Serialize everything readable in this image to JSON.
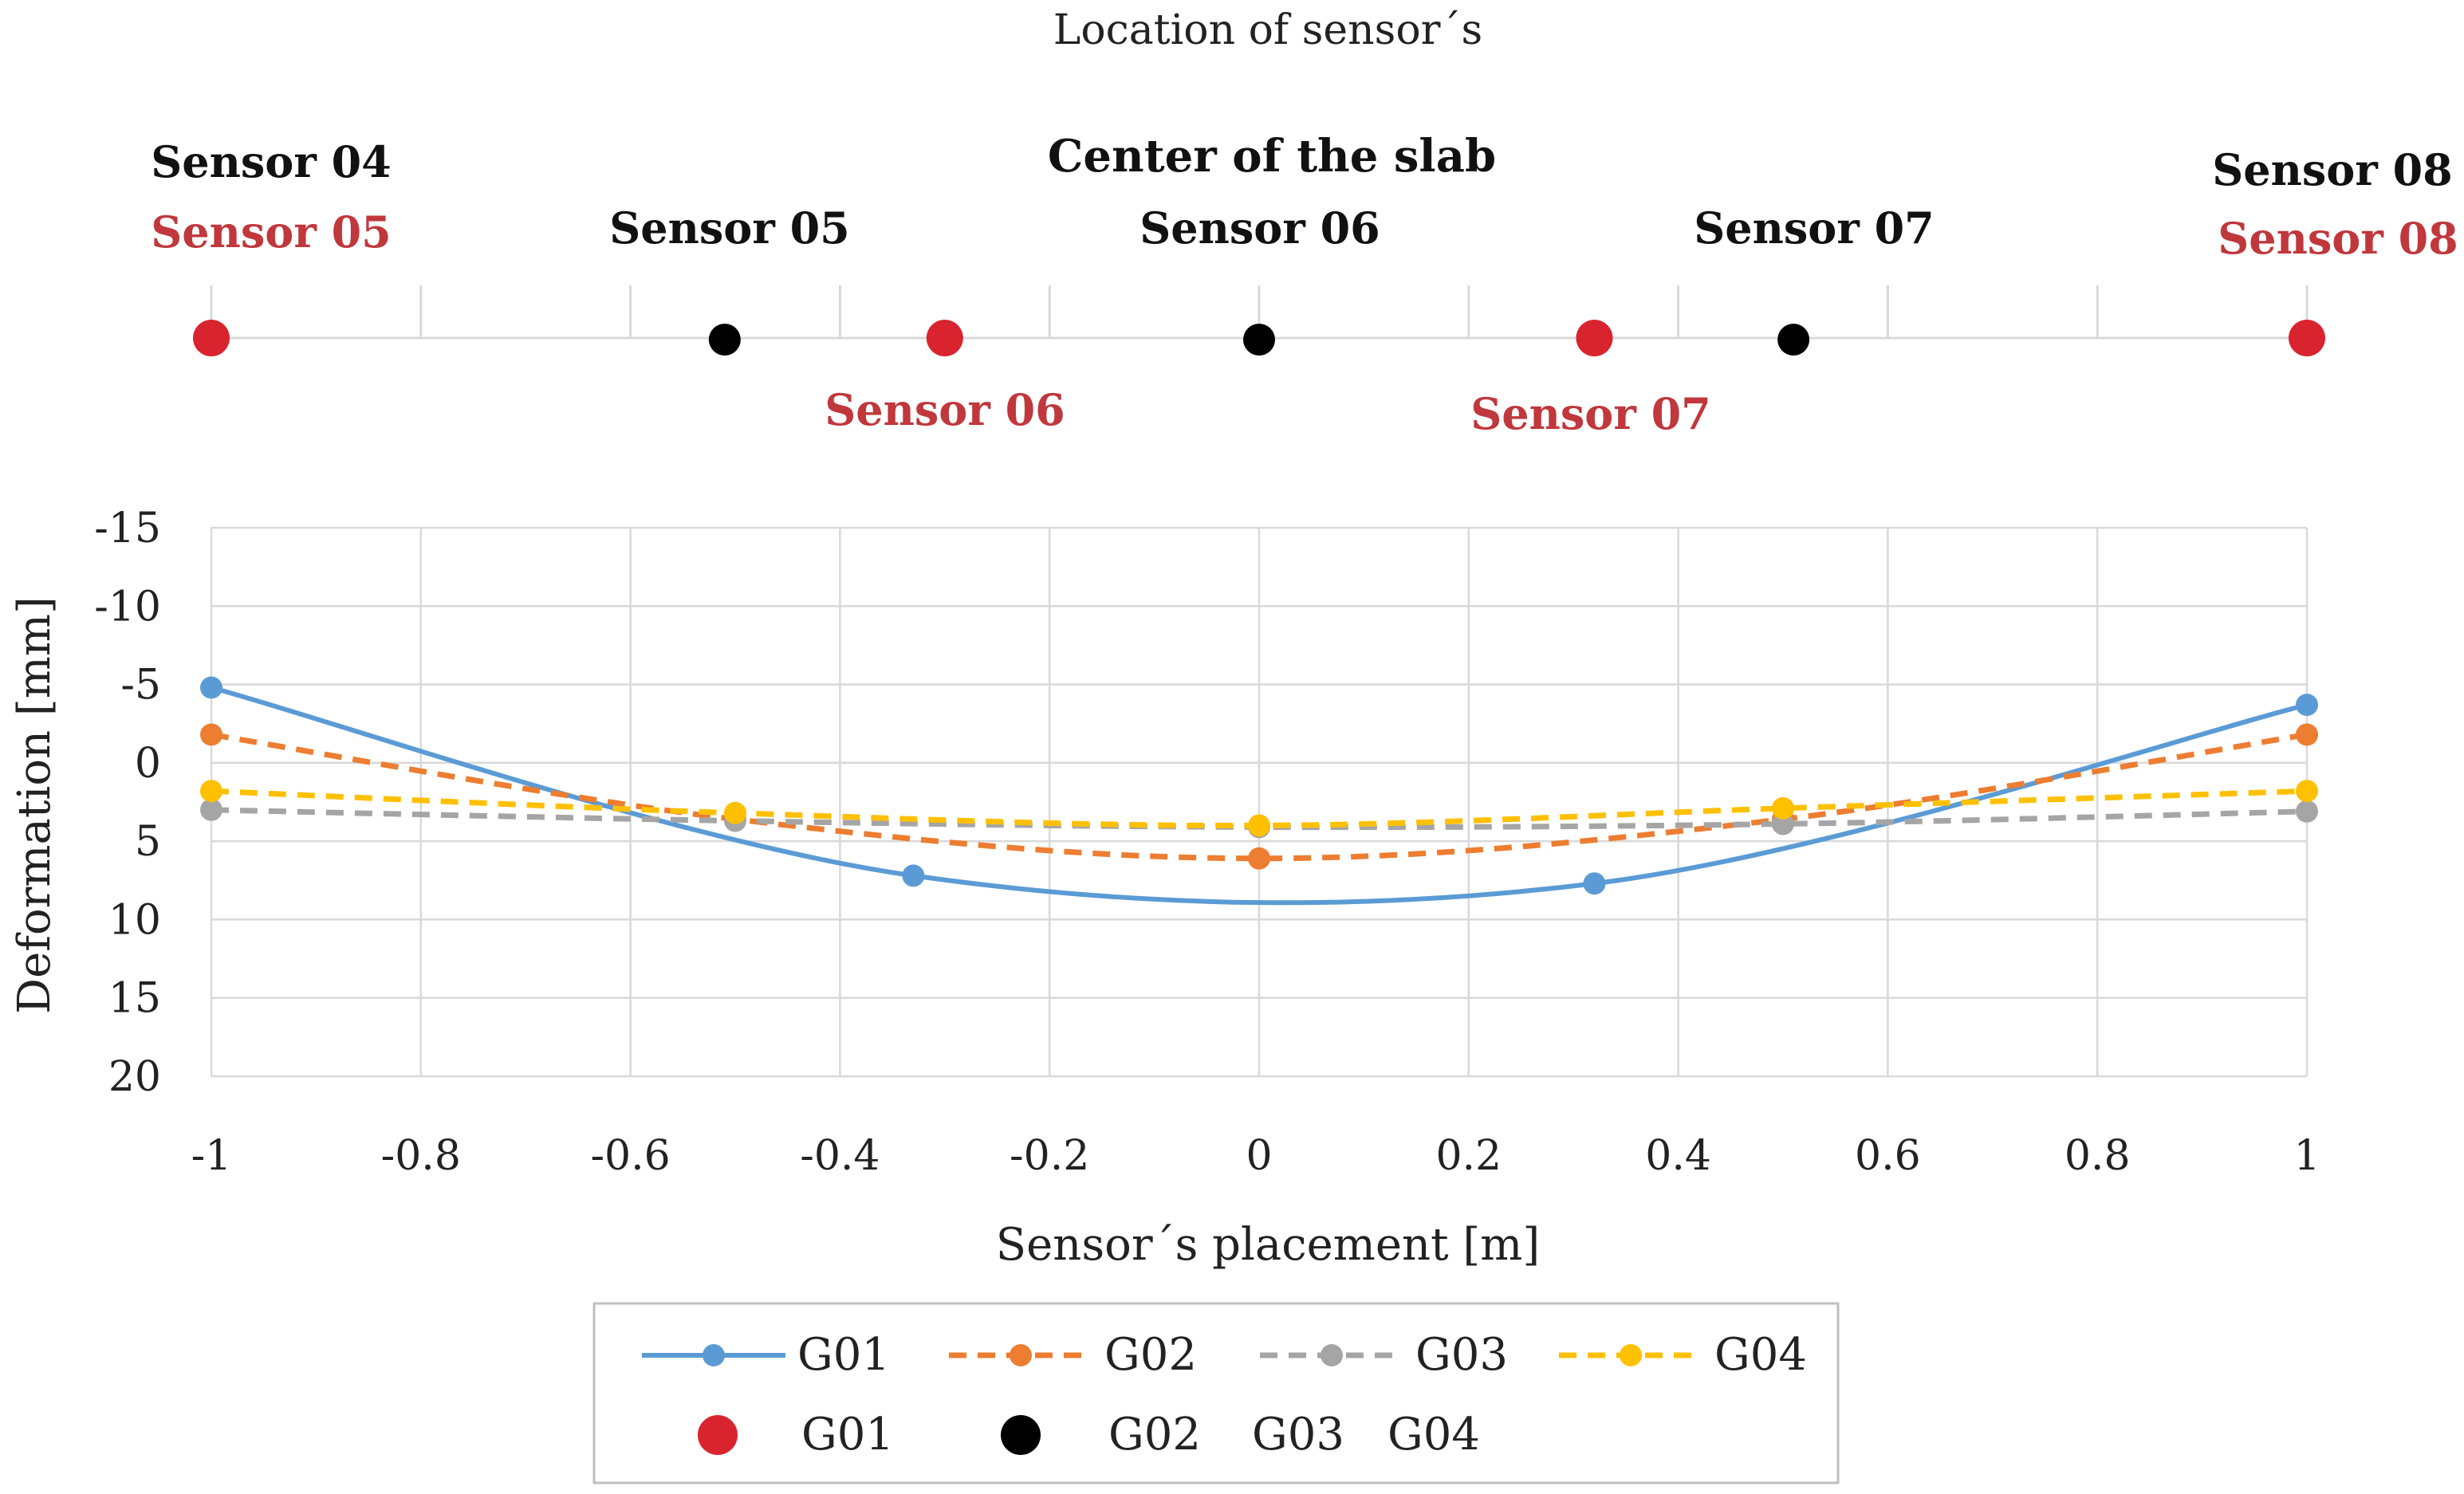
{
  "sensor_map": {
    "title": "Location of sensor´s",
    "center_label": "Center of the slab",
    "top_labels": {
      "s04_black": "Sensor 04",
      "s05_red_left": "Sensor 05",
      "s05_black": "Sensor 05",
      "s06_black": "Sensor 06",
      "s07_black": "Sensor 07",
      "s08_black": "Sensor 08",
      "s08_red": "Sensor 08"
    },
    "bottom_labels": {
      "s06_red": "Sensor 06",
      "s07_red": "Sensor 07"
    },
    "red_sensor_positions": [
      -1,
      -0.3,
      0.32,
      1
    ],
    "black_sensor_positions": [
      -0.51,
      0,
      0.51
    ],
    "colors": {
      "red": "#d9232e",
      "black": "#000000",
      "red_text": "#c0373c"
    }
  },
  "chart_data": {
    "type": "line",
    "xlabel": "Sensor´s placement [m]",
    "ylabel": "Deformation [mm]",
    "xlim": [
      -1,
      1
    ],
    "ylim": [
      -15,
      20
    ],
    "y_inverted": true,
    "x_ticks": [
      -1,
      -0.8,
      -0.6,
      -0.4,
      -0.2,
      0,
      0.2,
      0.4,
      0.6,
      0.8,
      1
    ],
    "x_tick_labels": [
      "-1",
      "-0.8",
      "-0.6",
      "-0.4",
      "-0.2",
      "0",
      "0.2",
      "0.4",
      "0.6",
      "0.8",
      "1"
    ],
    "y_ticks": [
      -15,
      -10,
      -5,
      0,
      5,
      10,
      15,
      20
    ],
    "y_tick_labels": [
      "-15",
      "-10",
      "-5",
      "0",
      "5",
      "10",
      "15",
      "20"
    ],
    "grid": true,
    "series": [
      {
        "name": "G01",
        "color": "#5b9bd5",
        "dash": "solid",
        "x": [
          -1,
          -0.33,
          0.32,
          1
        ],
        "y": [
          -4.8,
          7.2,
          7.7,
          -3.7
        ]
      },
      {
        "name": "G02",
        "color": "#ed7d31",
        "dash": "dashed",
        "x": [
          -1,
          -0.5,
          0,
          0.5,
          1
        ],
        "y": [
          -1.8,
          3.6,
          6.1,
          3.6,
          -1.8
        ]
      },
      {
        "name": "G03",
        "color": "#a5a5a5",
        "dash": "dashed",
        "x": [
          -1,
          -0.5,
          0,
          0.5,
          1
        ],
        "y": [
          3.0,
          3.7,
          4.1,
          3.9,
          3.1
        ]
      },
      {
        "name": "G04",
        "color": "#ffc000",
        "dash": "dashed",
        "x": [
          -1,
          -0.5,
          0,
          0.5,
          1
        ],
        "y": [
          1.8,
          3.2,
          4.0,
          2.9,
          1.8
        ]
      }
    ],
    "legend": {
      "placement": "bottom",
      "row2_labels": {
        "g01": "G01",
        "g02": "G02",
        "g03": "G03",
        "g04": "G04"
      }
    }
  }
}
